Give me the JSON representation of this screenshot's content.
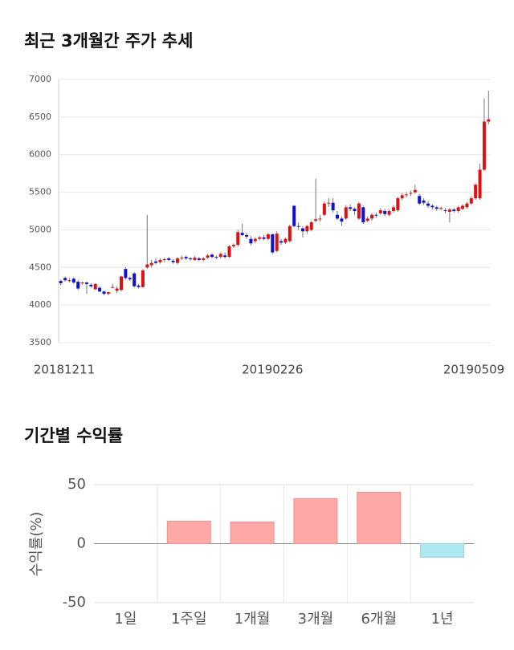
{
  "chart_data": [
    {
      "type": "candlestick",
      "title": "최근 3개월간 주가 추세",
      "categories": [
        "20181211",
        null,
        null,
        null,
        null,
        null,
        null,
        null,
        null,
        null,
        null,
        null,
        null,
        null,
        null,
        null,
        null,
        null,
        null,
        null,
        null,
        null,
        null,
        null,
        null,
        null,
        null,
        null,
        null,
        null,
        null,
        null,
        null,
        null,
        null,
        null,
        null,
        null,
        null,
        null,
        null,
        null,
        null,
        null,
        null,
        null,
        null,
        null,
        null,
        "20190226",
        null,
        null,
        null,
        null,
        null,
        null,
        null,
        null,
        null,
        null,
        null,
        null,
        null,
        null,
        null,
        null,
        null,
        null,
        null,
        null,
        null,
        null,
        null,
        null,
        null,
        null,
        null,
        null,
        null,
        null,
        null,
        null,
        null,
        null,
        null,
        null,
        null,
        null,
        null,
        null,
        null,
        null,
        null,
        null,
        null,
        null,
        null,
        null,
        null,
        "20190509"
      ],
      "open": [
        4320,
        4360,
        4330,
        4350,
        4310,
        4290,
        4300,
        4270,
        4210,
        4230,
        4180,
        4150,
        4230,
        4190,
        4200,
        4480,
        4360,
        4420,
        4260,
        4240,
        4500,
        4530,
        4580,
        4570,
        4600,
        4620,
        4590,
        4560,
        4620,
        4640,
        4620,
        4600,
        4620,
        4600,
        4630,
        4670,
        4640,
        4640,
        4660,
        4640,
        4780,
        4800,
        4960,
        4930,
        4880,
        4850,
        4880,
        4900,
        4880,
        4940,
        4720,
        4850,
        4830,
        4850,
        5320,
        5050,
        5020,
        4980,
        5000,
        5120,
        5140,
        5200,
        5350,
        5360,
        5200,
        5150,
        5150,
        5300,
        5280,
        5150,
        5300,
        5120,
        5150,
        5200,
        5220,
        5250,
        5200,
        5250,
        5260,
        5420,
        5460,
        5480,
        5500,
        5450,
        5390,
        5350,
        5320,
        5300,
        5280,
        5260,
        5240,
        5270,
        5250,
        5280,
        5300,
        5350,
        5420,
        5420,
        5800,
        6440
      ],
      "high": [
        4340,
        4380,
        4360,
        4370,
        4330,
        4310,
        4310,
        4290,
        4290,
        4250,
        4190,
        4180,
        4280,
        4250,
        4390,
        4500,
        4380,
        4440,
        4280,
        4480,
        5200,
        4600,
        4620,
        4620,
        4630,
        4640,
        4610,
        4640,
        4660,
        4660,
        4640,
        4650,
        4640,
        4640,
        4680,
        4690,
        4660,
        4700,
        4700,
        4800,
        4820,
        5000,
        5080,
        4960,
        4920,
        4900,
        4920,
        4930,
        4960,
        4950,
        4980,
        4880,
        4900,
        5070,
        5330,
        5100,
        5050,
        5070,
        5120,
        5680,
        5200,
        5380,
        5420,
        5420,
        5250,
        5180,
        5330,
        5340,
        5300,
        5370,
        5320,
        5180,
        5220,
        5230,
        5290,
        5280,
        5270,
        5330,
        5440,
        5490,
        5500,
        5520,
        5600,
        5480,
        5420,
        5380,
        5340,
        5320,
        5310,
        5290,
        5290,
        5290,
        5320,
        5340,
        5370,
        5450,
        5620,
        5880,
        6750,
        6850
      ],
      "low": [
        4260,
        4310,
        4300,
        4280,
        4200,
        4270,
        4150,
        4230,
        4200,
        4170,
        4130,
        4130,
        4220,
        4160,
        4180,
        4340,
        4320,
        4230,
        4220,
        4230,
        4480,
        4500,
        4540,
        4550,
        4570,
        4580,
        4550,
        4540,
        4600,
        4600,
        4590,
        4590,
        4580,
        4580,
        4610,
        4620,
        4610,
        4620,
        4620,
        4630,
        4760,
        4780,
        4920,
        4880,
        4790,
        4820,
        4860,
        4860,
        4860,
        4680,
        4700,
        4800,
        4810,
        4830,
        5030,
        5000,
        4900,
        4950,
        4980,
        5100,
        5110,
        5180,
        5300,
        5230,
        5130,
        5050,
        5130,
        5250,
        5200,
        5130,
        5080,
        5100,
        5120,
        5160,
        5200,
        5180,
        5180,
        5230,
        5240,
        5400,
        5430,
        5450,
        5480,
        5330,
        5330,
        5290,
        5270,
        5250,
        5260,
        5220,
        5100,
        5230,
        5230,
        5260,
        5280,
        5330,
        5400,
        5400,
        5780,
        6400
      ],
      "close": [
        4290,
        4330,
        4330,
        4300,
        4220,
        4300,
        4280,
        4250,
        4280,
        4180,
        4150,
        4170,
        4240,
        4220,
        4380,
        4360,
        4340,
        4250,
        4240,
        4460,
        4540,
        4560,
        4560,
        4600,
        4610,
        4600,
        4570,
        4620,
        4630,
        4620,
        4610,
        4630,
        4600,
        4620,
        4660,
        4640,
        4630,
        4680,
        4640,
        4780,
        4800,
        4970,
        4930,
        4910,
        4820,
        4880,
        4900,
        4880,
        4940,
        4700,
        4950,
        4830,
        4880,
        5050,
        5050,
        5040,
        4980,
        5050,
        5100,
        5140,
        5150,
        5350,
        5360,
        5260,
        5150,
        5110,
        5300,
        5280,
        5250,
        5350,
        5100,
        5150,
        5200,
        5190,
        5260,
        5210,
        5250,
        5300,
        5420,
        5460,
        5470,
        5490,
        5530,
        5350,
        5360,
        5320,
        5300,
        5280,
        5290,
        5250,
        5270,
        5250,
        5300,
        5320,
        5350,
        5420,
        5600,
        5800,
        6440,
        6470
      ],
      "up_color": "#dd1111",
      "down_color": "#1111cc",
      "ylim": [
        3500,
        7000
      ],
      "yticks": [
        3500,
        4000,
        4500,
        5000,
        5500,
        6000,
        6500,
        7000
      ],
      "grid": true
    },
    {
      "type": "bar",
      "title": "기간별 수익률",
      "y_label": "수익률(%)",
      "categories": [
        "1일",
        "1주일",
        "1개월",
        "3개월",
        "6개월",
        "1년"
      ],
      "values": [
        null,
        19,
        18.4,
        38.2,
        43.6,
        -11.5
      ],
      "positive_color": "#ffa8a8",
      "negative_color": "#aee9f2",
      "ylim": [
        -50,
        50
      ],
      "yticks": [
        -50,
        0,
        50
      ]
    }
  ]
}
